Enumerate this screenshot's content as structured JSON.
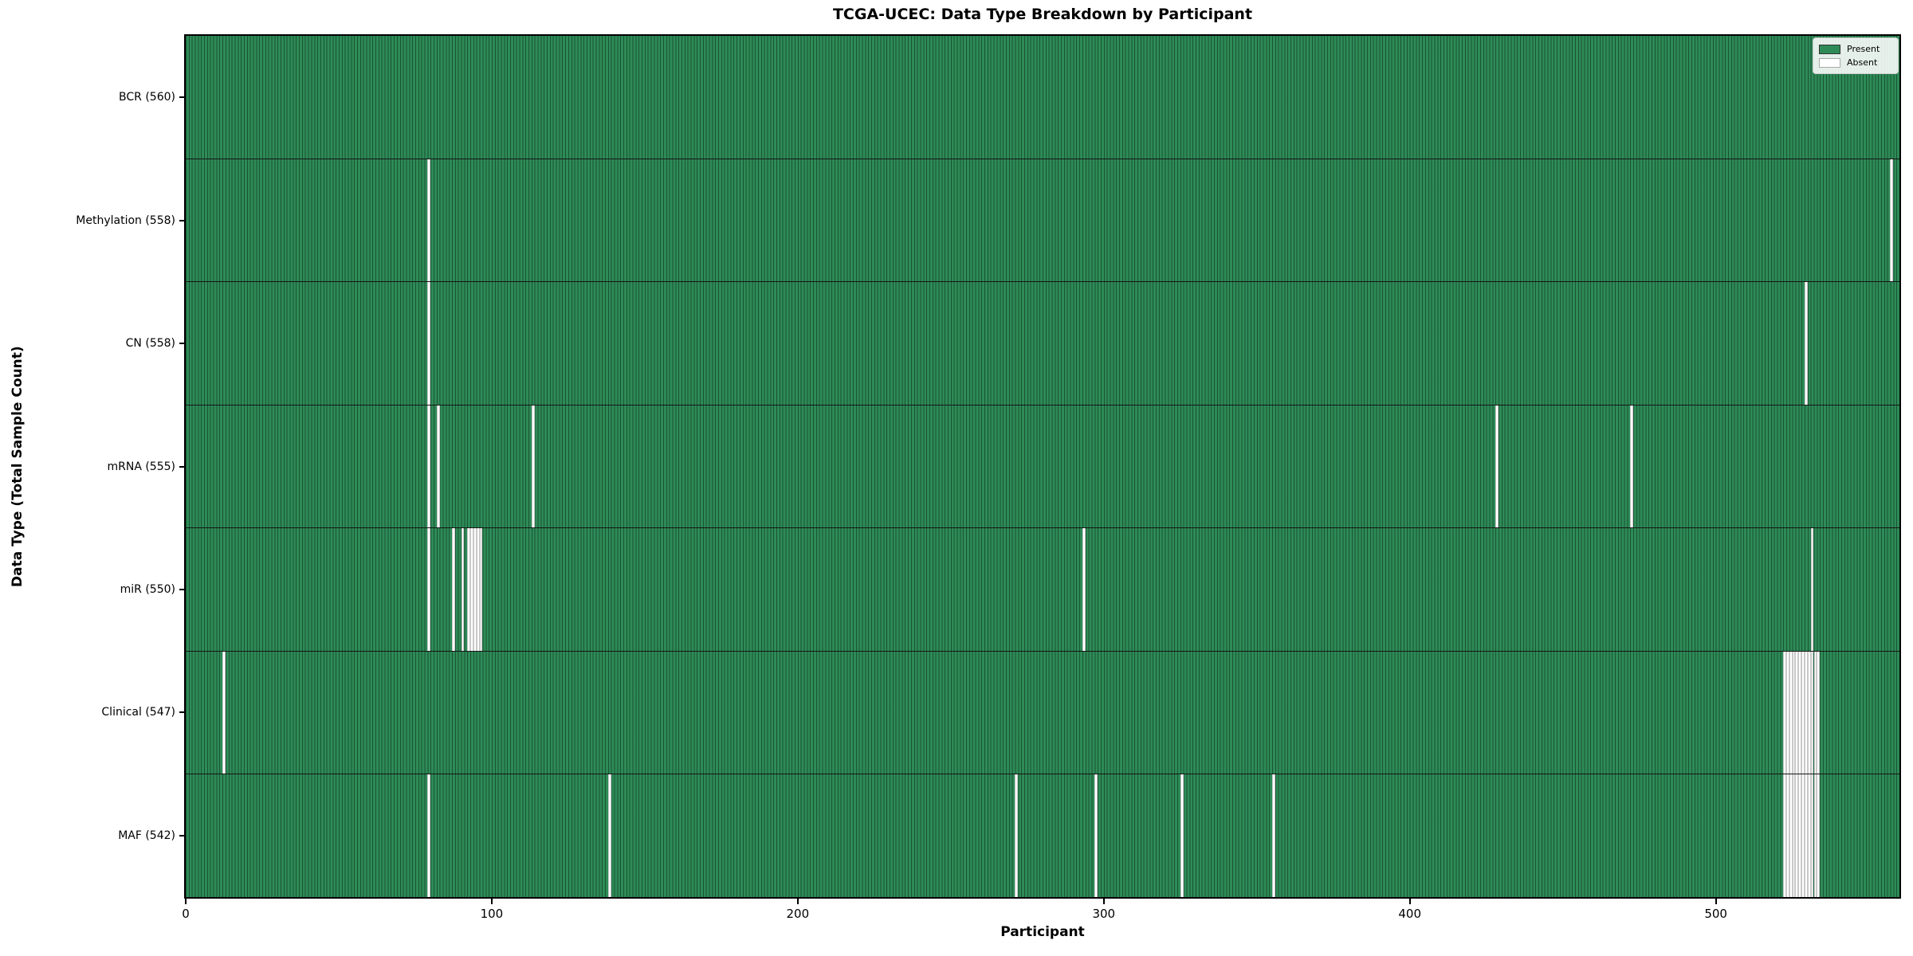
{
  "chart_data": {
    "type": "heatmap",
    "title": "TCGA-UCEC: Data Type Breakdown by Participant",
    "xlabel": "Participant",
    "ylabel": "Data Type (Total Sample Count)",
    "x_ticks": [
      0,
      100,
      200,
      300,
      400,
      500
    ],
    "x_max": 560,
    "n_participants": 560,
    "grid": false,
    "legend": {
      "position": "upper right",
      "entries": [
        {
          "name": "present",
          "label": "Present",
          "color": "#2e8b57",
          "edge": "#333333"
        },
        {
          "name": "absent",
          "label": "Absent",
          "color": "#ffffff",
          "edge": "#aaaaaa"
        }
      ]
    },
    "colors": {
      "present": "#2e8b57",
      "absent": "#ffffff",
      "bar_edge": "#1c4f33",
      "absent_bar_edge": "#c8c8c8",
      "row_separator": "#161616",
      "spine": "#000000"
    },
    "rows": [
      {
        "name": "BCR",
        "label": "BCR (560)",
        "total": 560,
        "absent": []
      },
      {
        "name": "Methylation",
        "label": "Methylation (558)",
        "total": 558,
        "absent": [
          79,
          557
        ]
      },
      {
        "name": "CN",
        "label": "CN (558)",
        "total": 558,
        "absent": [
          79,
          529
        ]
      },
      {
        "name": "mRNA",
        "label": "mRNA (555)",
        "total": 555,
        "absent": [
          79,
          82,
          113,
          428,
          472
        ]
      },
      {
        "name": "miR",
        "label": "miR (550)",
        "total": 550,
        "absent": [
          79,
          87,
          90,
          92,
          93,
          94,
          95,
          96,
          293,
          531
        ]
      },
      {
        "name": "Clinical",
        "label": "Clinical (547)",
        "total": 547,
        "absent": [
          12,
          522,
          523,
          524,
          525,
          526,
          527,
          528,
          529,
          530,
          531,
          532,
          533
        ]
      },
      {
        "name": "MAF",
        "label": "MAF (542)",
        "total": 542,
        "absent": [
          79,
          138,
          271,
          297,
          325,
          355,
          522,
          523,
          524,
          525,
          526,
          527,
          528,
          529,
          530,
          531,
          532,
          533
        ]
      }
    ]
  }
}
